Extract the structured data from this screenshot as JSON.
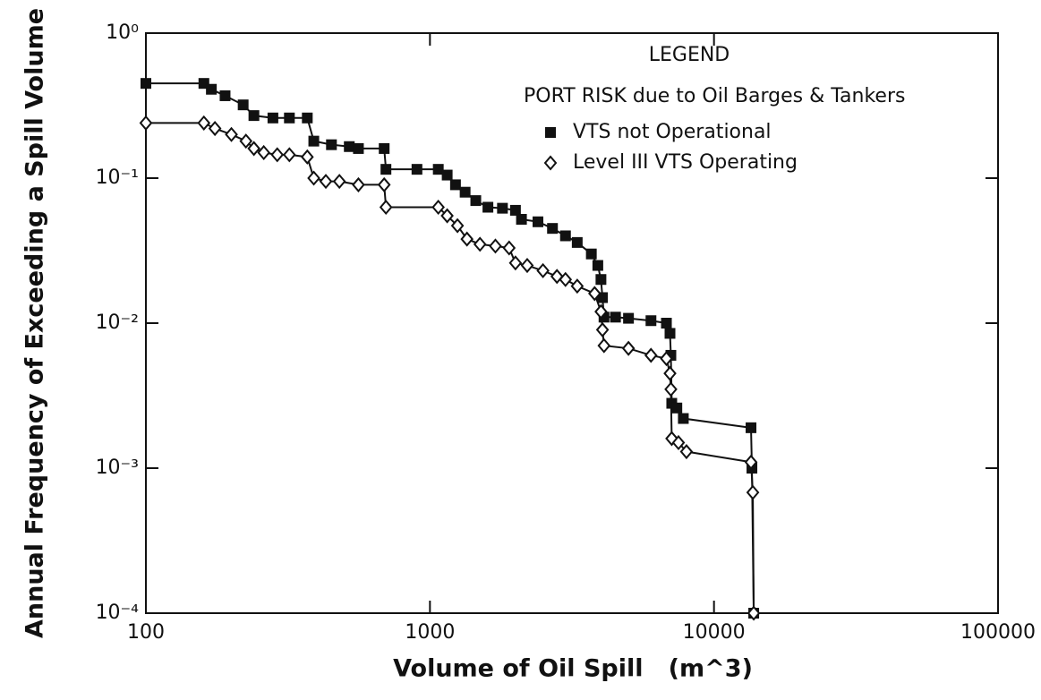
{
  "chart_data": {
    "type": "line",
    "x_label": "Volume of Oil Spill   (m^3)",
    "y_label": "Annual Frequency of Exceeding a Spill Volume",
    "legend_title": "LEGEND",
    "legend_subtitle": "PORT RISK due to Oil Barges & Tankers",
    "xlog": true,
    "ylog": true,
    "xlim": [
      100,
      100000
    ],
    "ylim": [
      0.0001,
      1
    ],
    "xticks": [
      100,
      1000,
      10000,
      100000
    ],
    "yticks": [
      {
        "value": 1,
        "label": "10⁰"
      },
      {
        "value": 0.1,
        "label": "10⁻¹"
      },
      {
        "value": 0.01,
        "label": "10⁻²"
      },
      {
        "value": 0.001,
        "label": "10⁻³"
      },
      {
        "value": 0.0001,
        "label": "10⁻⁴"
      }
    ],
    "series": [
      {
        "name": "VTS not Operational",
        "color": "#111111",
        "marker": "square",
        "x": [
          100,
          160,
          170,
          190,
          220,
          240,
          280,
          320,
          370,
          390,
          450,
          520,
          560,
          690,
          700,
          900,
          1070,
          1150,
          1230,
          1330,
          1450,
          1600,
          1800,
          2000,
          2100,
          2400,
          2700,
          3000,
          3300,
          3700,
          3900,
          4000,
          4050,
          4100,
          4500,
          5000,
          6000,
          6800,
          7000,
          7050,
          7100,
          7400,
          7800,
          13500,
          13600,
          13800
        ],
        "values": [
          0.45,
          0.45,
          0.41,
          0.37,
          0.32,
          0.27,
          0.26,
          0.26,
          0.26,
          0.18,
          0.17,
          0.165,
          0.16,
          0.16,
          0.115,
          0.115,
          0.115,
          0.105,
          0.09,
          0.08,
          0.07,
          0.063,
          0.062,
          0.06,
          0.052,
          0.05,
          0.045,
          0.04,
          0.036,
          0.03,
          0.025,
          0.02,
          0.015,
          0.011,
          0.011,
          0.0108,
          0.0104,
          0.01,
          0.0085,
          0.006,
          0.0028,
          0.0026,
          0.0022,
          0.0019,
          0.001,
          0.0001
        ]
      },
      {
        "name": "Level III VTS Operating",
        "color": "#111111",
        "marker": "diamond",
        "x": [
          100,
          160,
          175,
          200,
          225,
          240,
          260,
          290,
          320,
          370,
          390,
          430,
          480,
          560,
          690,
          700,
          1070,
          1150,
          1250,
          1350,
          1500,
          1700,
          1900,
          2000,
          2200,
          2500,
          2800,
          3000,
          3300,
          3800,
          4000,
          4050,
          4100,
          5000,
          6000,
          6800,
          7000,
          7050,
          7100,
          7500,
          8000,
          13500,
          13700,
          13800
        ],
        "values": [
          0.24,
          0.24,
          0.22,
          0.2,
          0.18,
          0.16,
          0.15,
          0.145,
          0.145,
          0.14,
          0.1,
          0.095,
          0.095,
          0.09,
          0.09,
          0.063,
          0.063,
          0.055,
          0.047,
          0.038,
          0.035,
          0.034,
          0.033,
          0.026,
          0.025,
          0.023,
          0.021,
          0.02,
          0.018,
          0.016,
          0.012,
          0.009,
          0.007,
          0.0067,
          0.006,
          0.0057,
          0.0045,
          0.0035,
          0.0016,
          0.0015,
          0.0013,
          0.0011,
          0.00068,
          0.0001
        ]
      }
    ]
  }
}
